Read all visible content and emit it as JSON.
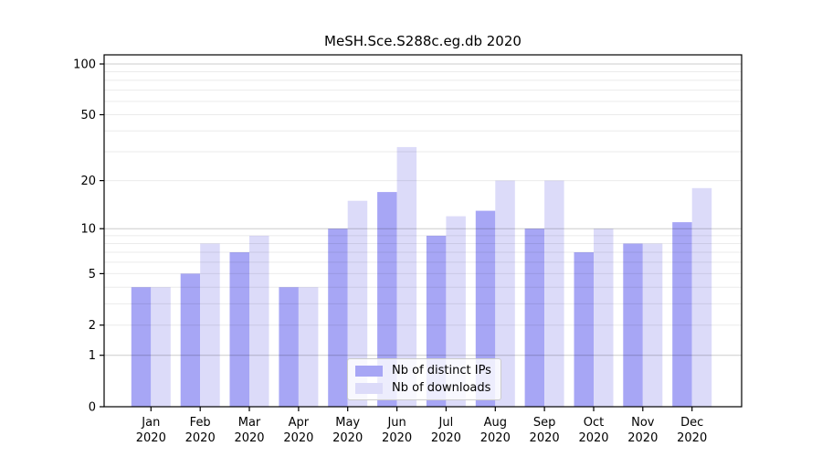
{
  "chart_data": {
    "type": "bar",
    "title": "MeSH.Sce.S288c.eg.db 2020",
    "categories": [
      {
        "month": "Jan",
        "year": "2020"
      },
      {
        "month": "Feb",
        "year": "2020"
      },
      {
        "month": "Mar",
        "year": "2020"
      },
      {
        "month": "Apr",
        "year": "2020"
      },
      {
        "month": "May",
        "year": "2020"
      },
      {
        "month": "Jun",
        "year": "2020"
      },
      {
        "month": "Jul",
        "year": "2020"
      },
      {
        "month": "Aug",
        "year": "2020"
      },
      {
        "month": "Sep",
        "year": "2020"
      },
      {
        "month": "Oct",
        "year": "2020"
      },
      {
        "month": "Nov",
        "year": "2020"
      },
      {
        "month": "Dec",
        "year": "2020"
      }
    ],
    "series": [
      {
        "name": "Nb of distinct IPs",
        "color": "#a7a6f5",
        "values": [
          4,
          5,
          7,
          4,
          10,
          17,
          9,
          13,
          10,
          7,
          8,
          11
        ]
      },
      {
        "name": "Nb of downloads",
        "color": "#dcdbf9",
        "values": [
          4,
          8,
          9,
          4,
          15,
          32,
          12,
          20,
          20,
          10,
          8,
          18
        ]
      }
    ],
    "xlabel": "",
    "ylabel": "",
    "y_scale": "log1p",
    "ylim": [
      0,
      120
    ],
    "y_tick_labels": [
      "0",
      "1",
      "2",
      "5",
      "10",
      "20",
      "50",
      "100"
    ],
    "y_tick_values": [
      0,
      1,
      2,
      5,
      10,
      20,
      50,
      100
    ],
    "grid": {
      "on": true,
      "major_values": [
        1,
        10,
        100
      ],
      "minor_values": [
        2,
        3,
        4,
        5,
        6,
        7,
        8,
        9,
        20,
        30,
        40,
        50,
        60,
        70,
        80,
        90
      ],
      "major_color": "rgba(0,0,0,0.20)",
      "minor_color": "rgba(0,0,0,0.08)"
    },
    "legend_position": "lower center",
    "axis_color": "#000000",
    "text_color": "#000000"
  }
}
